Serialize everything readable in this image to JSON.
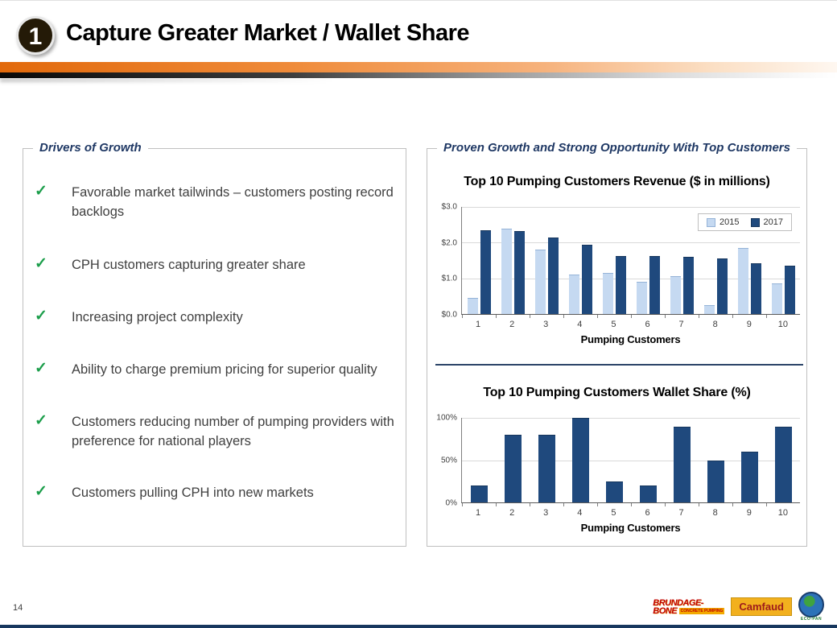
{
  "header": {
    "badge": "1",
    "title": "Capture Greater Market / Wallet Share"
  },
  "left_panel": {
    "header": "Drivers of Growth",
    "check_icon": "✓",
    "bullets": [
      "Favorable market tailwinds – customers posting record backlogs",
      "CPH customers capturing greater share",
      "Increasing project complexity",
      "Ability to charge premium pricing for superior quality",
      "Customers reducing number of pumping providers with preference for national players",
      "Customers pulling CPH into new markets"
    ]
  },
  "right_panel": {
    "header": "Proven Growth and Strong Opportunity With Top Customers"
  },
  "chart_data": [
    {
      "type": "bar",
      "title": "Top 10 Pumping Customers Revenue ($ in millions)",
      "categories": [
        "1",
        "2",
        "3",
        "4",
        "5",
        "6",
        "7",
        "8",
        "9",
        "10"
      ],
      "series": [
        {
          "name": "2015",
          "color": "#C5D9F1",
          "border": "#95B3D7",
          "values": [
            0.45,
            2.4,
            1.8,
            1.1,
            1.15,
            0.9,
            1.05,
            0.25,
            1.85,
            0.85
          ]
        },
        {
          "name": "2017",
          "color": "#1F497D",
          "border": "#16365C",
          "values": [
            2.35,
            2.33,
            2.15,
            1.95,
            1.63,
            1.63,
            1.6,
            1.55,
            1.43,
            1.35
          ]
        }
      ],
      "xlabel": "Pumping Customers",
      "ylabel": "",
      "ylim": [
        0,
        3
      ],
      "yticks": [
        {
          "value": 0,
          "label": "$0.0"
        },
        {
          "value": 1,
          "label": "$1.0"
        },
        {
          "value": 2,
          "label": "$2.0"
        },
        {
          "value": 3,
          "label": "$3.0"
        }
      ],
      "grid": true,
      "legend": true,
      "legend_position": "top-right"
    },
    {
      "type": "bar",
      "title": "Top 10 Pumping Customers Wallet Share (%)",
      "categories": [
        "1",
        "2",
        "3",
        "4",
        "5",
        "6",
        "7",
        "8",
        "9",
        "10"
      ],
      "series": [
        {
          "name": "Wallet Share",
          "color": "#1F497D",
          "border": "#16365C",
          "values": [
            20,
            80,
            80,
            100,
            25,
            20,
            90,
            50,
            60,
            90
          ]
        }
      ],
      "xlabel": "Pumping Customers",
      "ylabel": "",
      "ylim": [
        0,
        100
      ],
      "yticks": [
        {
          "value": 0,
          "label": "0%"
        },
        {
          "value": 50,
          "label": "50%"
        },
        {
          "value": 100,
          "label": "100%"
        }
      ],
      "grid": true,
      "legend": false
    }
  ],
  "footer": {
    "page_number": "14",
    "logos": {
      "brundage_line1": "BRUNDAGE-",
      "brundage_line2": "BONE",
      "brundage_sub": "CONCRETE PUMPING",
      "camfaud": "Camfaud",
      "ecopan": "ECO-PAN"
    }
  },
  "colors": {
    "accent_orange": "#E2690B",
    "header_navy": "#1F3864",
    "bar_2015": "#C5D9F1",
    "bar_2017": "#1F497D",
    "check_green": "#1C9E4B",
    "bottom_bar_navy": "#17375E"
  }
}
